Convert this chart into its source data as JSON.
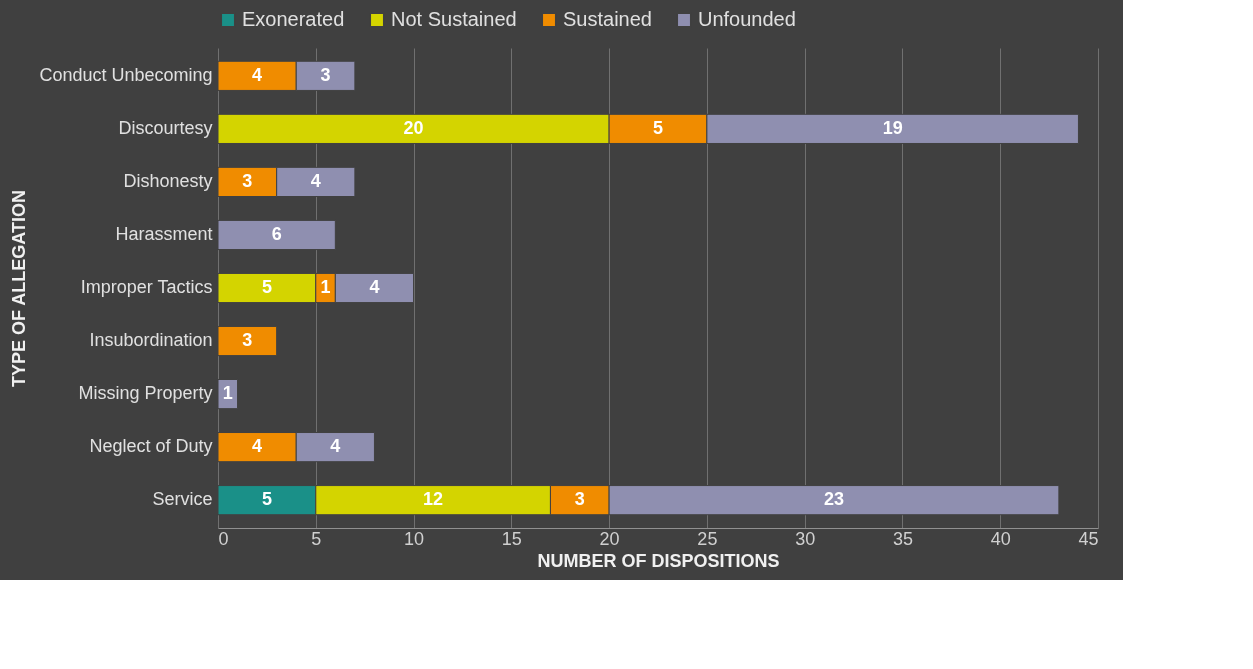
{
  "chart_data": {
    "type": "bar",
    "orientation": "horizontal",
    "stacked": true,
    "xlabel": "NUMBER OF DISPOSITIONS",
    "ylabel": "TYPE OF  ALLEGATION",
    "categories": [
      "Conduct Unbecoming",
      "Discourtesy",
      "Dishonesty",
      "Harassment",
      "Improper Tactics",
      "Insubordination",
      "Missing Property",
      "Neglect of Duty",
      "Service"
    ],
    "series": [
      {
        "name": "Exonerated",
        "color": "#1a9088",
        "values": [
          null,
          null,
          null,
          null,
          null,
          null,
          null,
          null,
          5
        ]
      },
      {
        "name": "Not Sustained",
        "color": "#d4d400",
        "values": [
          null,
          20,
          null,
          null,
          5,
          null,
          null,
          null,
          12
        ]
      },
      {
        "name": "Sustained",
        "color": "#f08c00",
        "values": [
          4,
          5,
          3,
          null,
          1,
          3,
          null,
          4,
          3
        ]
      },
      {
        "name": "Unfounded",
        "color": "#8f8fb0",
        "values": [
          3,
          19,
          4,
          6,
          4,
          null,
          1,
          4,
          23
        ]
      }
    ],
    "xlim": [
      0,
      45
    ],
    "xticks": [
      0,
      5,
      10,
      15,
      20,
      25,
      30,
      35,
      40,
      45
    ],
    "grid": "x",
    "legend": "top",
    "data_labels": true
  }
}
